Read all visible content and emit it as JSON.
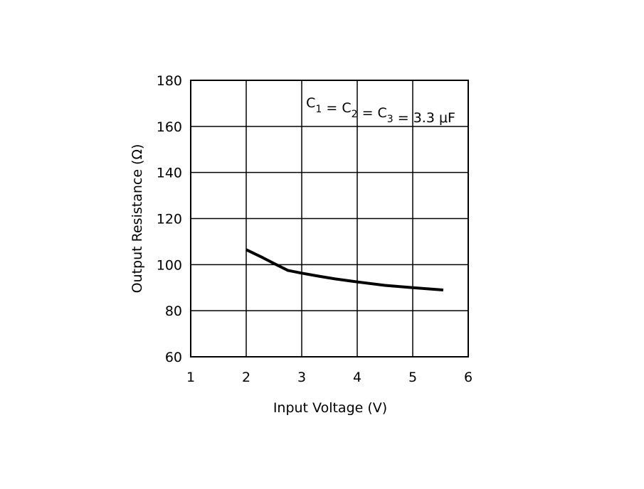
{
  "chart_data": {
    "type": "line",
    "title": "",
    "xlabel": "Input Voltage (V)",
    "ylabel": "Output Resistance (Ω)",
    "xlim": [
      1,
      6
    ],
    "ylim": [
      60,
      180
    ],
    "x_ticks": [
      "1",
      "2",
      "3",
      "4",
      "5",
      "6"
    ],
    "y_ticks": [
      "60",
      "80",
      "100",
      "120",
      "140",
      "160",
      "180"
    ],
    "grid": true,
    "annotation": {
      "parts": [
        {
          "text": "C",
          "sub": "1"
        },
        {
          "text": " = C",
          "sub": "2"
        },
        {
          "text": " = C",
          "sub": "3"
        },
        {
          "text": " = 3.3 μF",
          "sub": ""
        }
      ]
    },
    "series": [
      {
        "x": [
          2.0,
          2.3,
          2.5,
          2.75,
          3.0,
          3.3,
          3.6,
          4.0,
          4.5,
          5.0,
          5.55
        ],
        "y": [
          106.5,
          103.0,
          100.5,
          97.5,
          96.3,
          95.0,
          93.8,
          92.5,
          91.0,
          90.0,
          89.0
        ]
      }
    ],
    "line_color": "#000000"
  }
}
